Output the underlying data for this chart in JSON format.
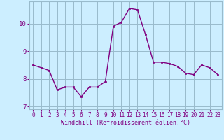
{
  "x": [
    0,
    1,
    2,
    3,
    4,
    5,
    6,
    7,
    8,
    9,
    10,
    11,
    12,
    13,
    14,
    15,
    16,
    17,
    18,
    19,
    20,
    21,
    22,
    23
  ],
  "y": [
    8.5,
    8.4,
    8.3,
    7.6,
    7.7,
    7.7,
    7.35,
    7.7,
    7.7,
    7.9,
    9.9,
    10.05,
    10.55,
    10.5,
    9.6,
    8.6,
    8.6,
    8.55,
    8.45,
    8.2,
    8.15,
    8.5,
    8.4,
    8.15
  ],
  "line_color": "#800080",
  "marker": "s",
  "marker_size": 2.0,
  "bg_color": "#cceeff",
  "grid_color": "#99bbcc",
  "xlabel": "Windchill (Refroidissement éolien,°C)",
  "tick_color": "#800080",
  "ylim": [
    6.9,
    10.8
  ],
  "yticks": [
    7,
    8,
    9,
    10
  ],
  "xticks": [
    0,
    1,
    2,
    3,
    4,
    5,
    6,
    7,
    8,
    9,
    10,
    11,
    12,
    13,
    14,
    15,
    16,
    17,
    18,
    19,
    20,
    21,
    22,
    23
  ],
  "line_width": 1.0,
  "tick_fontsize": 5.5,
  "xlabel_fontsize": 6.0
}
